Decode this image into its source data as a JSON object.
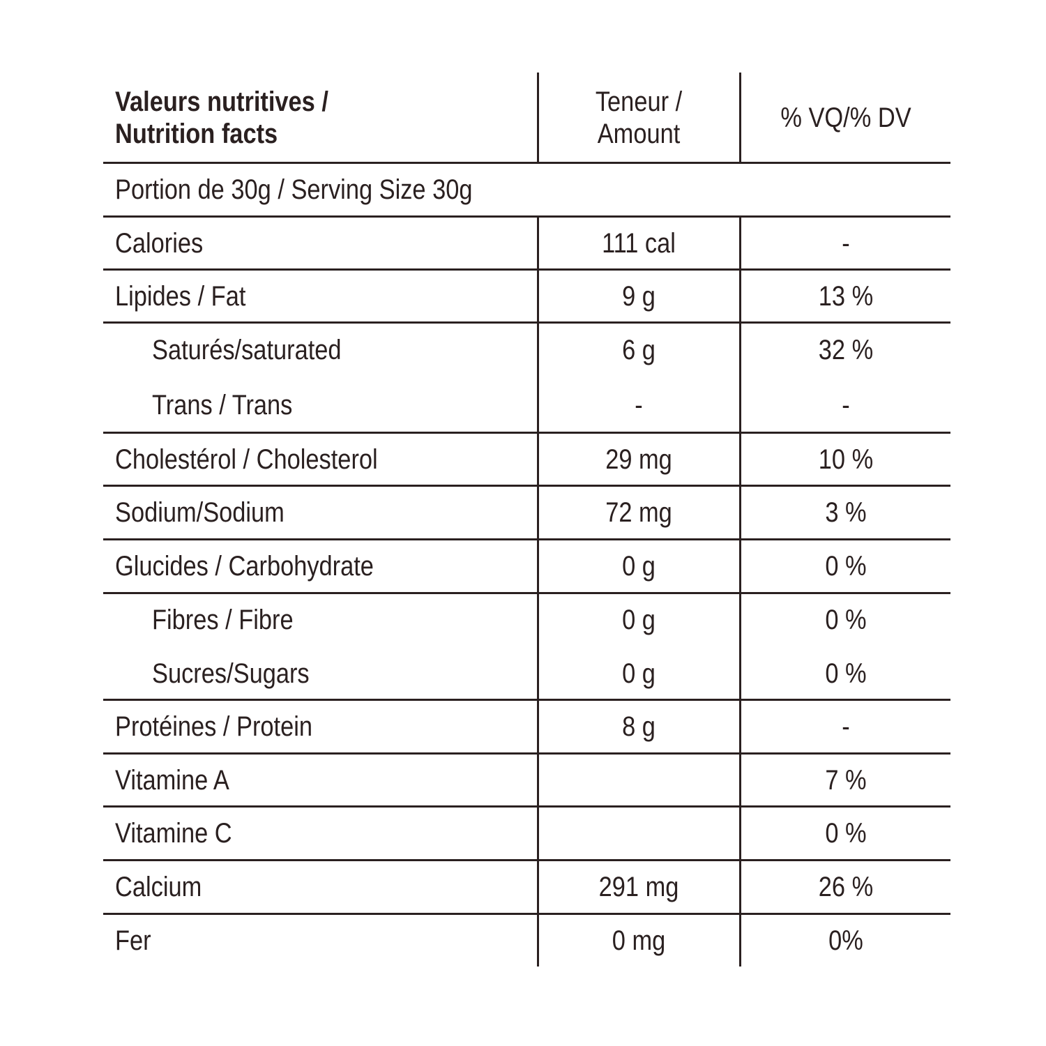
{
  "header": {
    "title_line1": "Valeurs nutritives /",
    "title_line2": "Nutrition facts",
    "amount_line1": "Teneur /",
    "amount_line2": "Amount",
    "dv": "% VQ/% DV"
  },
  "serving": "Portion de 30g / Serving Size 30g",
  "rows": [
    {
      "label": "Calories",
      "amount": "111 cal",
      "dv": "-"
    },
    {
      "label": "Lipides / Fat",
      "amount": "9 g",
      "dv": "13 %"
    },
    {
      "label": "Saturés/saturated",
      "amount": "6 g",
      "dv": "32 %"
    },
    {
      "label": "Trans / Trans",
      "amount": "-",
      "dv": "-"
    },
    {
      "label": "Cholestérol / Cholesterol",
      "amount": "29 mg",
      "dv": "10 %"
    },
    {
      "label": "Sodium/Sodium",
      "amount": "72 mg",
      "dv": "3 %"
    },
    {
      "label": "Glucides / Carbohydrate",
      "amount": "0 g",
      "dv": "0 %"
    },
    {
      "label": "Fibres / Fibre",
      "amount": "0 g",
      "dv": "0 %"
    },
    {
      "label": "Sucres/Sugars",
      "amount": "0 g",
      "dv": "0 %"
    },
    {
      "label": "Protéines / Protein",
      "amount": "8 g",
      "dv": "-"
    },
    {
      "label": "Vitamine A",
      "amount": "",
      "dv": "7 %"
    },
    {
      "label": "Vitamine C",
      "amount": "",
      "dv": "0 %"
    },
    {
      "label": "Calcium",
      "amount": "291 mg",
      "dv": "26 %"
    },
    {
      "label": "Fer",
      "amount": "0 mg",
      "dv": "0%"
    }
  ]
}
